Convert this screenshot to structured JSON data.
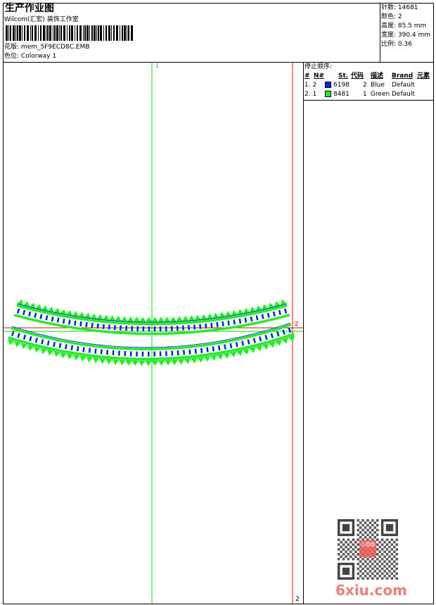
{
  "header": {
    "title": "生产作业图",
    "company": "Wilcom(汇宏) 装饰工作室",
    "design_label": "花版:",
    "design_file": "mem_5F9ECD8C.EMB",
    "colorway_label": "色位:",
    "colorway": "Colorway 1"
  },
  "stats": {
    "stitches": "针数: 14681",
    "colors": "颜色: 2",
    "height": "高度: 85.5 mm",
    "width": "宽度: 390.4 mm",
    "scale": "比例: 0.36"
  },
  "stop_sequence": {
    "title": "停止顺序:",
    "columns": [
      "#",
      "N#",
      "St.",
      "代码",
      "描述",
      "Brand",
      "元素"
    ],
    "rows": [
      {
        "index": "1. 2",
        "color": "#0020f0",
        "code": "6198",
        "stitches": "2",
        "desc": "Blue",
        "brand": "Default"
      },
      {
        "index": "2. 1",
        "color": "#20f020",
        "code": "8481",
        "stitches": "1",
        "desc": "Green",
        "brand": "Default"
      }
    ]
  },
  "canvas": {
    "marker_top": "1",
    "marker_right": "2",
    "marker_bottom": "2",
    "guide_green": "#00e000",
    "guide_red": "#ff0000"
  },
  "watermark": {
    "text": "6xiu.com",
    "seal": "以图版"
  }
}
